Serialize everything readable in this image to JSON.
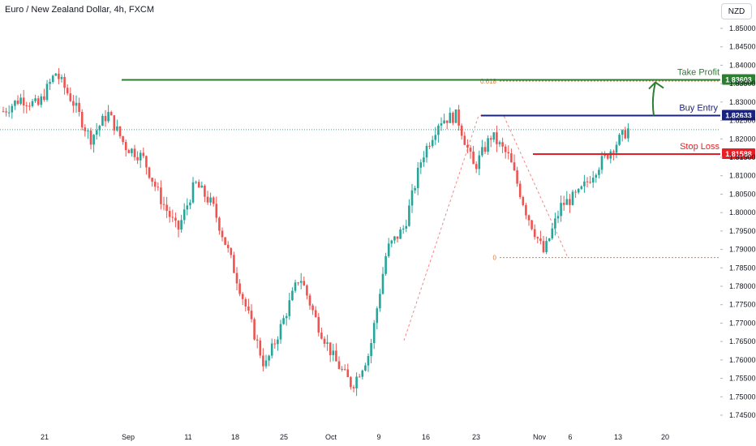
{
  "header": {
    "title": "Euro / New Zealand Dollar, 4h, FXCM",
    "currency": "NZD"
  },
  "chart_data": {
    "type": "candlestick",
    "title": "Euro / New Zealand Dollar, 4h, FXCM",
    "ylim": [
      1.743,
      1.8545
    ],
    "y_ticks": [
      "1.85000",
      "1.84500",
      "1.84000",
      "1.83500",
      "1.83000",
      "1.82500",
      "1.82000",
      "1.81500",
      "1.81000",
      "1.80500",
      "1.80000",
      "1.79500",
      "1.79000",
      "1.78500",
      "1.78000",
      "1.77500",
      "1.77000",
      "1.76500",
      "1.76000",
      "1.75500",
      "1.75000",
      "1.74500"
    ],
    "x_ticks": [
      "21",
      "Sep",
      "11",
      "18",
      "25",
      "Oct",
      "9",
      "16",
      "23",
      "Nov",
      "6",
      "13",
      "20"
    ],
    "grid": false,
    "colors": {
      "up": "#26a69a",
      "down": "#ef5350",
      "take_profit": "#2e7d32",
      "buy_entry": "#1a237e",
      "stop_loss": "#e91e24",
      "fib": "#e07b39",
      "current_price": "#26a69a"
    },
    "price_path": [
      [
        "21",
        1.8275
      ],
      [
        "21",
        1.831
      ],
      [
        "Sep",
        1.829
      ],
      [
        "Sep",
        1.838
      ],
      [
        "Sep",
        1.83
      ],
      [
        "Sep",
        1.82
      ],
      [
        "11",
        1.827
      ],
      [
        "11",
        1.818
      ],
      [
        "11",
        1.815
      ],
      [
        "18",
        1.804
      ],
      [
        "18",
        1.795
      ],
      [
        "18",
        1.808
      ],
      [
        "25",
        1.802
      ],
      [
        "25",
        1.788
      ],
      [
        "25",
        1.773
      ],
      [
        "Oct",
        1.758
      ],
      [
        "Oct",
        1.77
      ],
      [
        "Oct",
        1.783
      ],
      [
        "9",
        1.77
      ],
      [
        "9",
        1.76
      ],
      [
        "9",
        1.753
      ],
      [
        "16",
        1.762
      ],
      [
        "16",
        1.79
      ],
      [
        "16",
        1.796
      ],
      [
        "23",
        1.815
      ],
      [
        "23",
        1.825
      ],
      [
        "23",
        1.8263
      ],
      [
        "23",
        1.812
      ],
      [
        "Nov",
        1.821
      ],
      [
        "Nov",
        1.815
      ],
      [
        "Nov",
        1.8
      ],
      [
        "6",
        1.789
      ],
      [
        "6",
        1.802
      ],
      [
        "6",
        1.805
      ],
      [
        "13",
        1.812
      ],
      [
        "13",
        1.818
      ],
      [
        "13",
        1.8235
      ]
    ],
    "levels": [
      {
        "name": "Take Profit",
        "value": 1.83603,
        "label": "1.83603"
      },
      {
        "name": "Buy Entry",
        "value": 1.82633,
        "label": "1.82633"
      },
      {
        "name": "Stop Loss",
        "value": 1.81588,
        "label": "1.81588"
      }
    ],
    "fibonacci": [
      {
        "level": "0.618",
        "value": 1.8357
      },
      {
        "level": "0",
        "value": 1.7878
      }
    ],
    "current_price": 1.8225
  }
}
